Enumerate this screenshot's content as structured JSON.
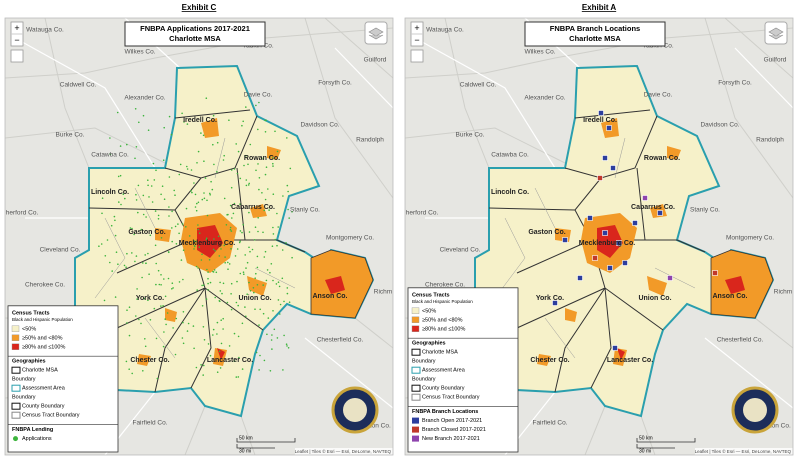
{
  "exhibits": [
    {
      "heading": "Exhibit C",
      "title": "FNBPA Applications 2017-2021",
      "subtitle": "Charlotte MSA",
      "zoom_in": "+",
      "zoom_out": "−",
      "places": [
        "Watauga Co.",
        "Wilkes Co.",
        "Yadkin Co.",
        "Forsyth Co.",
        "Guilford",
        "Caldwell Co.",
        "Alexander Co.",
        "Davie Co.",
        "Davidson Co.",
        "Burke Co.",
        "Iredell Co.",
        "Rowan Co.",
        "Randolph",
        "Catawba Co.",
        "Lincoln Co.",
        "Cabarrus Co.",
        "Stanly Co.",
        "herford Co.",
        "Cleveland Co.",
        "Gaston Co.",
        "Mecklenburg Co.",
        "Montgomery Co.",
        "Union Co.",
        "Anson Co.",
        "Richm",
        "Cherokee Co.",
        "York Co.",
        "Chester Co.",
        "Lancaster Co.",
        "Chesterfield Co.",
        "Fairfield Co.",
        "Darlington Co."
      ],
      "legend": [
        {
          "title": "Census Tracts",
          "note": "Black and Hispanic Population",
          "items": [
            "<50%",
            "≥50% and <80%",
            "≥80% and ≤100%"
          ]
        },
        {
          "title": "Geographies",
          "items": [
            "Charlotte MSA",
            "Boundary",
            "Assessment Area",
            "Boundary",
            "County Boundary",
            "Census Tract Boundary"
          ]
        },
        {
          "title": "FNBPA Lending",
          "items": [
            "Applications"
          ]
        }
      ],
      "scale": [
        "50 km",
        "30 mi"
      ],
      "attribution": "Leaflet | Tiles © Esri — Esri, DeLorme, NAVTEQ"
    },
    {
      "heading": "Exhibit A",
      "title": "FNBPA Branch Locations",
      "subtitle": "Charlotte MSA",
      "zoom_in": "+",
      "zoom_out": "−",
      "places": [
        "Watauga Co.",
        "Wilkes Co.",
        "Yadkin Co.",
        "Forsyth Co.",
        "Guilford",
        "Caldwell Co.",
        "Alexander Co.",
        "Davie Co.",
        "Davidson Co.",
        "Burke Co.",
        "Iredell Co.",
        "Rowan Co.",
        "Randolph",
        "Catawba Co.",
        "Lincoln Co.",
        "Cabarrus Co.",
        "Stanly Co.",
        "herford Co.",
        "Cleveland Co.",
        "Gaston Co.",
        "Mecklenburg Co.",
        "Montgomery Co.",
        "Union Co.",
        "Anson Co.",
        "Richm",
        "Cherokee Co.",
        "York Co.",
        "Chester Co.",
        "Lancaster Co.",
        "Chesterfield Co.",
        "Fairfield Co.",
        "Darlington Co."
      ],
      "legend": [
        {
          "title": "Census Tracts",
          "note": "Black and Hispanic Population",
          "items": [
            "<50%",
            "≥50% and <80%",
            "≥80% and ≤100%"
          ]
        },
        {
          "title": "Geographies",
          "items": [
            "Charlotte MSA",
            "Boundary",
            "Assessment Area",
            "Boundary",
            "County Boundary",
            "Census Tract Boundary"
          ]
        },
        {
          "title": "FNBPA Branch Locations",
          "items": [
            "Branch Open 2017-2021",
            "Branch Closed 2017-2021",
            "New Branch 2017-2021"
          ]
        }
      ],
      "scale": [
        "50 km",
        "30 mi"
      ],
      "attribution": "Leaflet | Tiles © Esri — Esri, DeLorme, NAVTEQ"
    }
  ]
}
